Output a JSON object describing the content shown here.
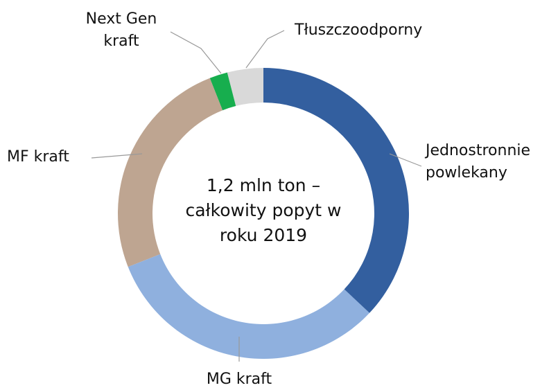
{
  "chart_data": {
    "type": "donut",
    "center_text": "1,2 mln ton – całkowity popyt w roku 2019",
    "categories": [
      "Jednostronnie powlekany",
      "MG kraft",
      "MF kraft",
      "Next Gen kraft",
      "Tłuszczoodporny"
    ],
    "values": [
      37,
      32,
      25,
      2,
      4
    ],
    "colors": [
      "#335f9f",
      "#8fb0de",
      "#bea591",
      "#17ae4e",
      "#d9d9d9"
    ]
  }
}
